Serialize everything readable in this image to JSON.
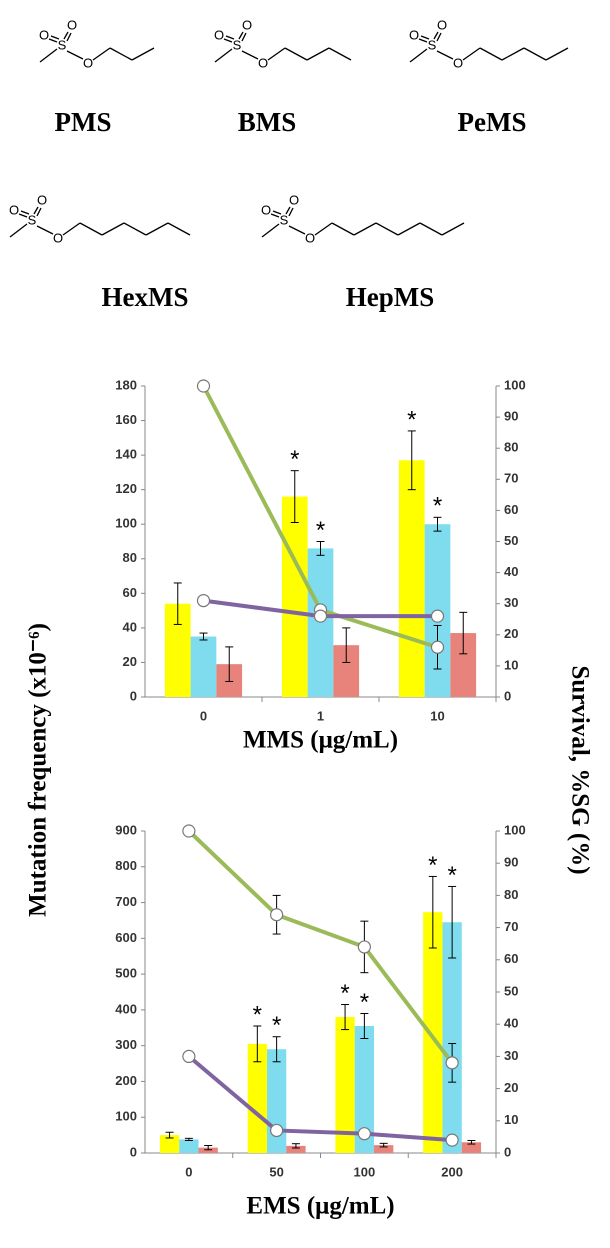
{
  "structures": [
    {
      "label": "PMS",
      "atoms": [
        "O",
        "O",
        "S",
        "O"
      ]
    },
    {
      "label": "BMS",
      "atoms": [
        "O",
        "O",
        "S",
        "O"
      ]
    },
    {
      "label": "PeMS",
      "atoms": [
        "O",
        "O",
        "S",
        "O"
      ]
    },
    {
      "label": "HexMS",
      "atoms": [
        "O",
        "O",
        "S",
        "O"
      ]
    },
    {
      "label": "HepMS",
      "atoms": [
        "O",
        "O",
        "S",
        "O"
      ]
    }
  ],
  "chart_data": [
    {
      "type": "bar",
      "ylabel": "Mutation frequency (x10⁻⁶)",
      "y2label": "Survival, %SG (%)",
      "xlabel": "MMS (μg/mL)",
      "categories": [
        "0",
        "1",
        "10"
      ],
      "ylim": [
        0,
        180
      ],
      "yticks": [
        0,
        20,
        40,
        60,
        80,
        100,
        120,
        140,
        160,
        180
      ],
      "y2lim": [
        0,
        100
      ],
      "y2ticks": [
        0,
        10,
        20,
        30,
        40,
        50,
        60,
        70,
        80,
        90,
        100
      ],
      "series": [
        {
          "color": "#ffff00",
          "values": [
            54,
            116,
            137
          ],
          "errors": [
            12,
            15,
            17
          ],
          "annotations": [
            null,
            "*",
            "*"
          ]
        },
        {
          "color": "#7fdcef",
          "values": [
            35,
            86,
            100
          ],
          "errors": [
            2,
            4,
            4
          ],
          "annotations": [
            null,
            "*",
            "*"
          ]
        },
        {
          "color": "#e8837c",
          "values": [
            19,
            30,
            37
          ],
          "errors": [
            10,
            10,
            12
          ]
        },
        {
          "kind": "line",
          "axis": "y2",
          "color": "#9bbb59",
          "values": [
            100,
            28,
            16
          ],
          "errors": [
            null,
            null,
            7
          ]
        },
        {
          "kind": "line",
          "axis": "y2",
          "color": "#8064a2",
          "values": [
            31,
            26,
            26
          ]
        }
      ]
    },
    {
      "type": "bar",
      "xlabel": "EMS (μg/mL)",
      "categories": [
        "0",
        "50",
        "100",
        "200"
      ],
      "ylim": [
        0,
        900
      ],
      "yticks": [
        0,
        100,
        200,
        300,
        400,
        500,
        600,
        700,
        800,
        900
      ],
      "y2lim": [
        0,
        100
      ],
      "y2ticks": [
        0,
        10,
        20,
        30,
        40,
        50,
        60,
        70,
        80,
        90,
        100
      ],
      "series": [
        {
          "color": "#ffff00",
          "values": [
            50,
            305,
            380,
            673
          ],
          "errors": [
            8,
            50,
            35,
            100
          ],
          "annotations": [
            null,
            "*",
            "*",
            "*"
          ]
        },
        {
          "color": "#7fdcef",
          "values": [
            38,
            290,
            355,
            645
          ],
          "errors": [
            3,
            35,
            35,
            100
          ],
          "annotations": [
            null,
            "*",
            "*",
            "*"
          ]
        },
        {
          "color": "#e8837c",
          "values": [
            15,
            20,
            22,
            30
          ],
          "errors": [
            6,
            6,
            5,
            5
          ]
        },
        {
          "kind": "line",
          "axis": "y2",
          "color": "#9bbb59",
          "values": [
            100,
            74,
            64,
            28
          ],
          "errors": [
            null,
            6,
            8,
            6
          ]
        },
        {
          "kind": "line",
          "axis": "y2",
          "color": "#8064a2",
          "values": [
            30,
            7,
            6,
            4
          ]
        }
      ]
    }
  ]
}
